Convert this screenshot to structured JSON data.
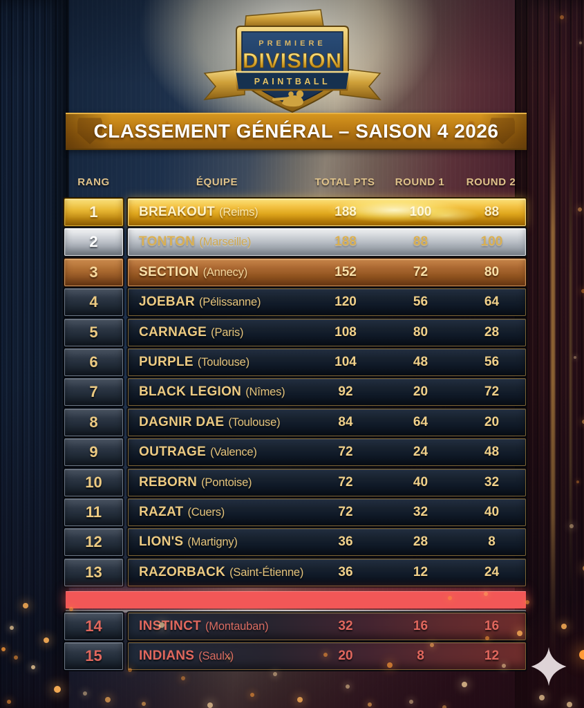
{
  "logo": {
    "top_label": "P R E M I E R E",
    "main_label": "DIVISION",
    "ribbon_label": "PAINTBALL"
  },
  "banner": {
    "title": "CLASSEMENT GÉNÉRAL – SAISON 4 2026"
  },
  "table": {
    "headers": {
      "rank": "RANG",
      "team": "ÉQUIPE",
      "total": "TOTAL PTS",
      "round1": "ROUND 1",
      "round2": "ROUND 2"
    },
    "rows": [
      {
        "rank": "1",
        "team": "BREAKOUT",
        "city": "(Reims)",
        "total": "188",
        "round1": "100",
        "round2": "88",
        "tier": "gold"
      },
      {
        "rank": "2",
        "team": "TONTON",
        "city": "(Marseille)",
        "total": "188",
        "round1": "88",
        "round2": "100",
        "tier": "silver"
      },
      {
        "rank": "3",
        "team": "SECTION",
        "city": "(Annecy)",
        "total": "152",
        "round1": "72",
        "round2": "80",
        "tier": "bronze"
      },
      {
        "rank": "4",
        "team": "JOEBAR",
        "city": "(Pélissanne)",
        "total": "120",
        "round1": "56",
        "round2": "64",
        "tier": "normal"
      },
      {
        "rank": "5",
        "team": "CARNAGE",
        "city": "(Paris)",
        "total": "108",
        "round1": "80",
        "round2": "28",
        "tier": "normal"
      },
      {
        "rank": "6",
        "team": "PURPLE",
        "city": "(Toulouse)",
        "total": "104",
        "round1": "48",
        "round2": "56",
        "tier": "normal"
      },
      {
        "rank": "7",
        "team": "BLACK LEGION",
        "city": "(Nîmes)",
        "total": "92",
        "round1": "20",
        "round2": "72",
        "tier": "normal"
      },
      {
        "rank": "8",
        "team": "DAGNIR DAE",
        "city": "(Toulouse)",
        "total": "84",
        "round1": "64",
        "round2": "20",
        "tier": "normal"
      },
      {
        "rank": "9",
        "team": "OUTRAGE",
        "city": "(Valence)",
        "total": "72",
        "round1": "24",
        "round2": "48",
        "tier": "normal"
      },
      {
        "rank": "10",
        "team": "REBORN",
        "city": "(Pontoise)",
        "total": "72",
        "round1": "40",
        "round2": "32",
        "tier": "normal"
      },
      {
        "rank": "11",
        "team": "RAZAT",
        "city": "(Cuers)",
        "total": "72",
        "round1": "32",
        "round2": "40",
        "tier": "normal"
      },
      {
        "rank": "12",
        "team": "LION'S",
        "city": "(Martigny)",
        "total": "36",
        "round1": "28",
        "round2": "8",
        "tier": "normal"
      },
      {
        "rank": "13",
        "team": "RAZORBACK",
        "city": "(Saint-Étienne)",
        "total": "36",
        "round1": "12",
        "round2": "24",
        "tier": "normal"
      },
      {
        "rank": "14",
        "team": "INSTINCT",
        "city": "(Montauban)",
        "total": "32",
        "round1": "16",
        "round2": "16",
        "tier": "danger"
      },
      {
        "rank": "15",
        "team": "INDIANS",
        "city": "(Saulx)",
        "total": "20",
        "round1": "8",
        "round2": "12",
        "tier": "danger"
      }
    ]
  },
  "colors": {
    "gold_accent": "#f2c14e",
    "row_text_gold": "#ecca82",
    "header_text": "#dfc28a",
    "relegation_red": "#f25757",
    "danger_text": "#e0675d",
    "banner_orange": "#bd7d15",
    "navy_dark": "#101a28"
  }
}
